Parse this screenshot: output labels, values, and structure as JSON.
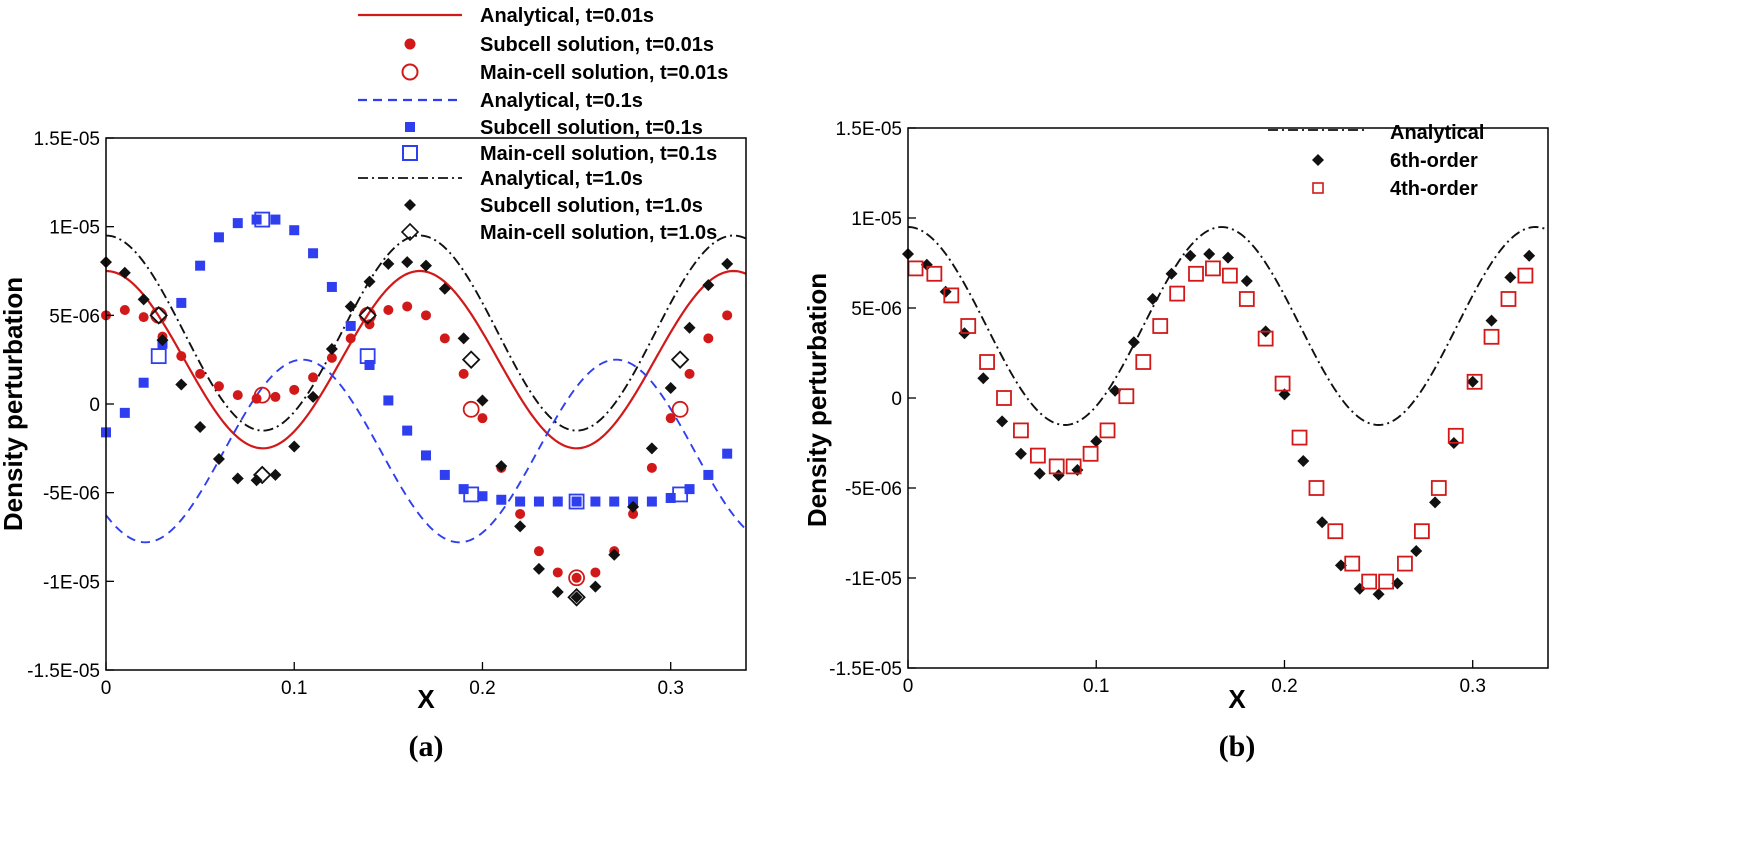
{
  "panels": [
    {
      "id": "a",
      "label": "(a)",
      "xlabel": "X",
      "ylabel": "Density perturbation",
      "xlim": [
        0,
        0.34
      ],
      "ylim": [
        -1.5e-05,
        1.5e-05
      ],
      "xticks": [
        {
          "v": 0,
          "t": "0"
        },
        {
          "v": 0.1,
          "t": "0.1"
        },
        {
          "v": 0.2,
          "t": "0.2"
        },
        {
          "v": 0.3,
          "t": "0.3"
        }
      ],
      "yticks": [
        {
          "v": 1.5e-05,
          "t": "1.5E-05"
        },
        {
          "v": 1e-05,
          "t": "1E-05"
        },
        {
          "v": 5e-06,
          "t": "5E-06"
        },
        {
          "v": 0,
          "t": "0"
        },
        {
          "v": -5e-06,
          "t": "-5E-06"
        },
        {
          "v": -1e-05,
          "t": "-1E-05"
        },
        {
          "v": -1.5e-05,
          "t": "-1.5E-05"
        }
      ]
    },
    {
      "id": "b",
      "label": "(b)",
      "xlabel": "X",
      "ylabel": "Density perturbation",
      "xlim": [
        0,
        0.34
      ],
      "ylim": [
        -1.5e-05,
        1.5e-05
      ],
      "xticks": [
        {
          "v": 0,
          "t": "0"
        },
        {
          "v": 0.1,
          "t": "0.1"
        },
        {
          "v": 0.2,
          "t": "0.2"
        },
        {
          "v": 0.3,
          "t": "0.3"
        }
      ],
      "yticks": [
        {
          "v": 1.5e-05,
          "t": "1.5E-05"
        },
        {
          "v": 1e-05,
          "t": "1E-05"
        },
        {
          "v": 5e-06,
          "t": "5E-06"
        },
        {
          "v": 0,
          "t": "0"
        },
        {
          "v": -5e-06,
          "t": "-5E-06"
        },
        {
          "v": -1e-05,
          "t": "-1E-05"
        },
        {
          "v": -1.5e-05,
          "t": "-1.5E-05"
        }
      ]
    }
  ],
  "chart_data": [
    {
      "panel": "a",
      "type": "line",
      "xlabel": "X",
      "ylabel": "Density perturbation",
      "xlim": [
        0,
        0.34
      ],
      "ylim": [
        -1.5e-05,
        1.5e-05
      ],
      "grid": false,
      "legend_position": "top-center",
      "series": [
        {
          "name": "Analytical, t=0.01s",
          "kind": "line",
          "style": "solid",
          "color": "#d11919",
          "func": {
            "a": 7.5e-06,
            "b": -2.5e-06,
            "phase": 0
          }
        },
        {
          "name": "Subcell  solution, t=0.01s",
          "kind": "points",
          "marker": "filled-circle",
          "color": "#d11919",
          "x": [
            0,
            0.01,
            0.02,
            0.03,
            0.04,
            0.05,
            0.06,
            0.07,
            0.08,
            0.09,
            0.1,
            0.11,
            0.12,
            0.13,
            0.14,
            0.15,
            0.16,
            0.17,
            0.18,
            0.19,
            0.2,
            0.21,
            0.22,
            0.23,
            0.24,
            0.25,
            0.26,
            0.27,
            0.28,
            0.29,
            0.3,
            0.31,
            0.32,
            0.33
          ],
          "y": [
            5e-06,
            5.3e-06,
            4.9e-06,
            3.8e-06,
            2.7e-06,
            1.7e-06,
            1e-06,
            5e-07,
            3e-07,
            4e-07,
            8e-07,
            1.5e-06,
            2.6e-06,
            3.7e-06,
            4.5e-06,
            5.3e-06,
            5.5e-06,
            5e-06,
            3.7e-06,
            1.7e-06,
            -8e-07,
            -3.6e-06,
            -6.2e-06,
            -8.3e-06,
            -9.5e-06,
            -9.8e-06,
            -9.5e-06,
            -8.3e-06,
            -6.2e-06,
            -3.6e-06,
            -8e-07,
            1.7e-06,
            3.7e-06,
            5e-06
          ]
        },
        {
          "name": "Main-cell solution, t=0.01s",
          "kind": "points",
          "marker": "open-circle",
          "color": "#d11919",
          "x": [
            0.028,
            0.083,
            0.139,
            0.194,
            0.25,
            0.305
          ],
          "y": [
            5e-06,
            5e-07,
            5e-06,
            -3e-07,
            -9.8e-06,
            -3e-07
          ]
        },
        {
          "name": "Analytical, t=0.1s",
          "kind": "line",
          "style": "dashed",
          "color": "#2f3ff0",
          "func": {
            "a": -7.8e-06,
            "b": 2.5e-06,
            "phase": 0.021
          }
        },
        {
          "name": "Subcell  solution, t=0.1s",
          "kind": "points",
          "marker": "filled-square",
          "color": "#2f3ff0",
          "x": [
            0,
            0.01,
            0.02,
            0.03,
            0.04,
            0.05,
            0.06,
            0.07,
            0.08,
            0.09,
            0.1,
            0.11,
            0.12,
            0.13,
            0.14,
            0.15,
            0.16,
            0.17,
            0.18,
            0.19,
            0.2,
            0.21,
            0.22,
            0.23,
            0.24,
            0.25,
            0.26,
            0.27,
            0.28,
            0.29,
            0.3,
            0.31,
            0.32,
            0.33
          ],
          "y": [
            -1.6e-06,
            -5e-07,
            1.2e-06,
            3.4e-06,
            5.7e-06,
            7.8e-06,
            9.4e-06,
            1.02e-05,
            1.04e-05,
            1.04e-05,
            9.8e-06,
            8.5e-06,
            6.6e-06,
            4.4e-06,
            2.2e-06,
            2e-07,
            -1.5e-06,
            -2.9e-06,
            -4e-06,
            -4.8e-06,
            -5.2e-06,
            -5.4e-06,
            -5.5e-06,
            -5.5e-06,
            -5.5e-06,
            -5.5e-06,
            -5.5e-06,
            -5.5e-06,
            -5.5e-06,
            -5.5e-06,
            -5.3e-06,
            -4.8e-06,
            -4e-06,
            -2.8e-06
          ]
        },
        {
          "name": "Main-cell solution, t=0.1s",
          "kind": "points",
          "marker": "open-square",
          "color": "#2f3ff0",
          "x": [
            0.028,
            0.083,
            0.139,
            0.194,
            0.25,
            0.305
          ],
          "y": [
            2.7e-06,
            1.04e-05,
            2.7e-06,
            -5.1e-06,
            -5.5e-06,
            -5.1e-06
          ]
        },
        {
          "name": "Analytical, t=1.0s",
          "kind": "line",
          "style": "dash-dot",
          "color": "#111111",
          "func": {
            "a": 9.5e-06,
            "b": -1.5e-06,
            "phase": 0
          }
        },
        {
          "name": "Subcell  solution, t=1.0s",
          "kind": "points",
          "marker": "filled-diamond",
          "color": "#111111",
          "x": [
            0,
            0.01,
            0.02,
            0.03,
            0.04,
            0.05,
            0.06,
            0.07,
            0.08,
            0.09,
            0.1,
            0.11,
            0.12,
            0.13,
            0.14,
            0.15,
            0.16,
            0.17,
            0.18,
            0.19,
            0.2,
            0.21,
            0.22,
            0.23,
            0.24,
            0.25,
            0.26,
            0.27,
            0.28,
            0.29,
            0.3,
            0.31,
            0.32,
            0.33
          ],
          "y": [
            8e-06,
            7.4e-06,
            5.9e-06,
            3.6e-06,
            1.1e-06,
            -1.3e-06,
            -3.1e-06,
            -4.2e-06,
            -4.3e-06,
            -4e-06,
            -2.4e-06,
            4e-07,
            3.1e-06,
            5.5e-06,
            6.9e-06,
            7.9e-06,
            8e-06,
            7.8e-06,
            6.5e-06,
            3.7e-06,
            2e-07,
            -3.5e-06,
            -6.9e-06,
            -9.3e-06,
            -1.06e-05,
            -1.09e-05,
            -1.03e-05,
            -8.5e-06,
            -5.8e-06,
            -2.5e-06,
            9e-07,
            4.3e-06,
            6.7e-06,
            7.9e-06
          ]
        },
        {
          "name": "Main-cell solution, t=1.0s",
          "kind": "points",
          "marker": "open-diamond",
          "color": "#111111",
          "x": [
            0.028,
            0.083,
            0.139,
            0.194,
            0.25,
            0.305
          ],
          "y": [
            5e-06,
            -4e-06,
            5e-06,
            2.5e-06,
            -1.09e-05,
            2.5e-06
          ]
        }
      ]
    },
    {
      "panel": "b",
      "type": "line",
      "xlabel": "X",
      "ylabel": "Density perturbation",
      "xlim": [
        0,
        0.34
      ],
      "ylim": [
        -1.5e-05,
        1.5e-05
      ],
      "grid": false,
      "legend_position": "top-right",
      "series": [
        {
          "name": "Analytical",
          "kind": "line",
          "style": "dash-dot",
          "color": "#111111",
          "func": {
            "a": 9.5e-06,
            "b": -1.5e-06,
            "phase": 0
          }
        },
        {
          "name": "6th-order",
          "kind": "points",
          "marker": "filled-diamond",
          "color": "#111111",
          "x": [
            0,
            0.01,
            0.02,
            0.03,
            0.04,
            0.05,
            0.06,
            0.07,
            0.08,
            0.09,
            0.1,
            0.11,
            0.12,
            0.13,
            0.14,
            0.15,
            0.16,
            0.17,
            0.18,
            0.19,
            0.2,
            0.21,
            0.22,
            0.23,
            0.24,
            0.25,
            0.26,
            0.27,
            0.28,
            0.29,
            0.3,
            0.31,
            0.32,
            0.33
          ],
          "y": [
            8e-06,
            7.4e-06,
            5.9e-06,
            3.6e-06,
            1.1e-06,
            -1.3e-06,
            -3.1e-06,
            -4.2e-06,
            -4.3e-06,
            -4e-06,
            -2.4e-06,
            4e-07,
            3.1e-06,
            5.5e-06,
            6.9e-06,
            7.9e-06,
            8e-06,
            7.8e-06,
            6.5e-06,
            3.7e-06,
            2e-07,
            -3.5e-06,
            -6.9e-06,
            -9.3e-06,
            -1.06e-05,
            -1.09e-05,
            -1.03e-05,
            -8.5e-06,
            -5.8e-06,
            -2.5e-06,
            9e-07,
            4.3e-06,
            6.7e-06,
            7.9e-06
          ]
        },
        {
          "name": "4th-order",
          "kind": "points",
          "marker": "open-square",
          "color": "#d11919",
          "x": [
            0.004,
            0.014,
            0.023,
            0.032,
            0.042,
            0.051,
            0.06,
            0.069,
            0.079,
            0.088,
            0.097,
            0.106,
            0.116,
            0.125,
            0.134,
            0.143,
            0.153,
            0.162,
            0.171,
            0.18,
            0.19,
            0.199,
            0.208,
            0.217,
            0.227,
            0.236,
            0.245,
            0.254,
            0.264,
            0.273,
            0.282,
            0.291,
            0.301,
            0.31,
            0.319,
            0.328
          ],
          "y": [
            7.2e-06,
            6.9e-06,
            5.7e-06,
            4e-06,
            2e-06,
            0,
            -1.8e-06,
            -3.2e-06,
            -3.8e-06,
            -3.8e-06,
            -3.1e-06,
            -1.8e-06,
            1e-07,
            2e-06,
            4e-06,
            5.8e-06,
            6.9e-06,
            7.2e-06,
            6.8e-06,
            5.5e-06,
            3.3e-06,
            8e-07,
            -2.2e-06,
            -5e-06,
            -7.4e-06,
            -9.2e-06,
            -1.02e-05,
            -1.02e-05,
            -9.2e-06,
            -7.4e-06,
            -5e-06,
            -2.1e-06,
            9e-07,
            3.4e-06,
            5.5e-06,
            6.8e-06
          ]
        }
      ]
    }
  ]
}
